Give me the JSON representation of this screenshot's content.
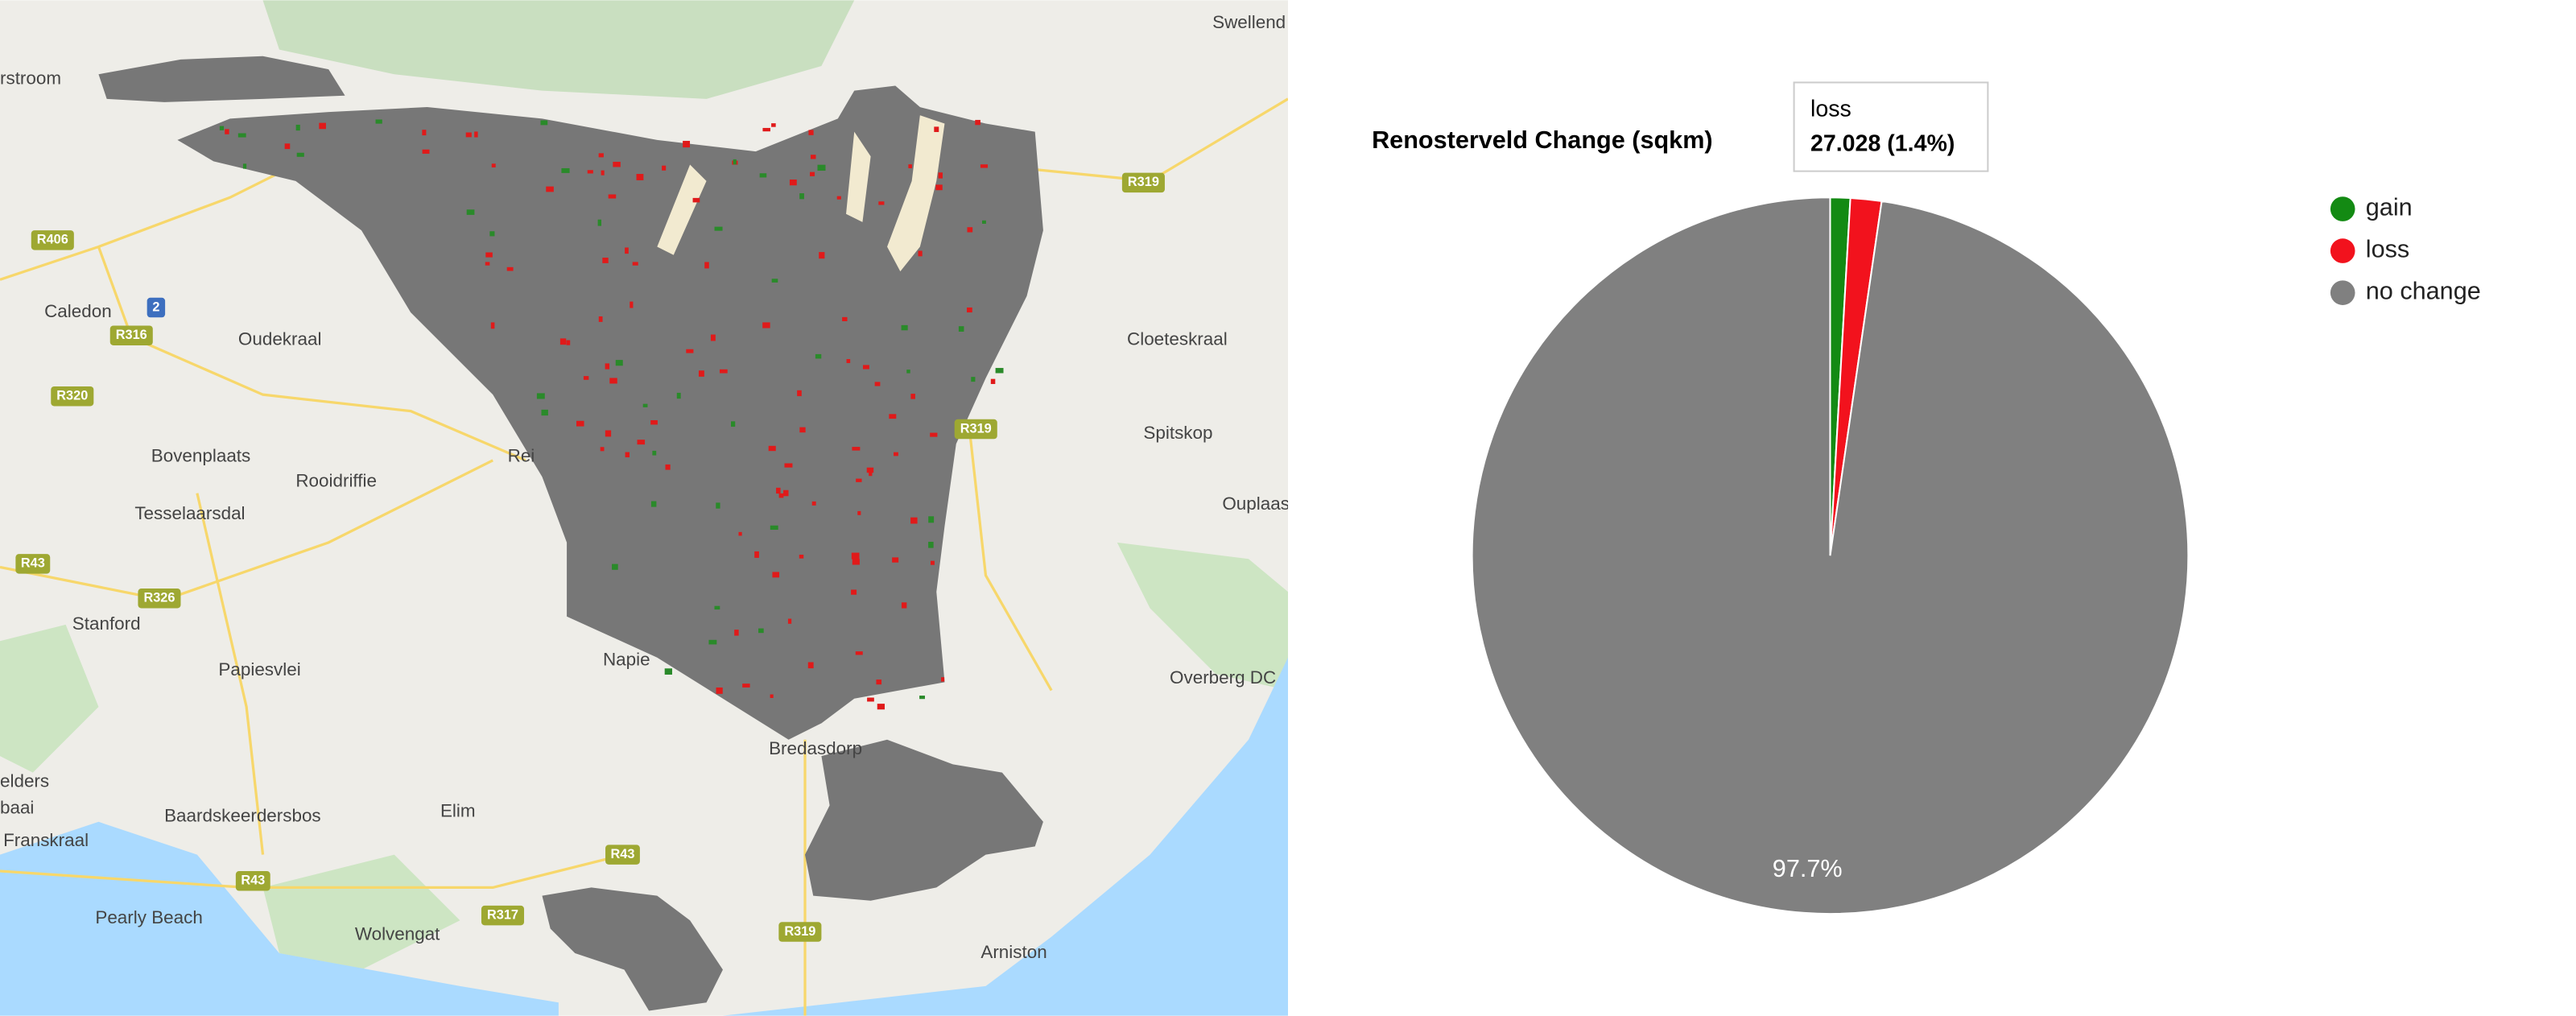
{
  "map": {
    "places": [
      "rstroom",
      "Swellend",
      "Caledon",
      "Oudekraal",
      "Bovenplaats",
      "Rooidriffie",
      "Tesselaarsdal",
      "Stanford",
      "Papiesvlei",
      "Napie",
      "Bredasdorp",
      "elders",
      "baai",
      "Baardskeerdersbos",
      "Elim",
      "Franskraal",
      "Pearly Beach",
      "Wolvengat",
      "Arniston",
      "Cloeteskraal",
      "Spitskop",
      "Ouplaas",
      "Overberg DC",
      "Rei"
    ],
    "roads": [
      "R406",
      "R316",
      "R320",
      "R43",
      "R326",
      "R319",
      "R319",
      "R43",
      "R43",
      "R317",
      "R319",
      "2"
    ]
  },
  "chart_data": {
    "type": "pie",
    "title": "Renosterveld Change (sqkm)",
    "categories": [
      "gain",
      "loss",
      "no change"
    ],
    "values": [
      0.9,
      1.4,
      97.7
    ],
    "value_labels": [
      null,
      null,
      "97.7%"
    ],
    "colors": [
      "#138a13",
      "#f2121d",
      "#808080"
    ],
    "tooltip": {
      "title": "loss",
      "text": "27.028 (1.4%)"
    }
  }
}
